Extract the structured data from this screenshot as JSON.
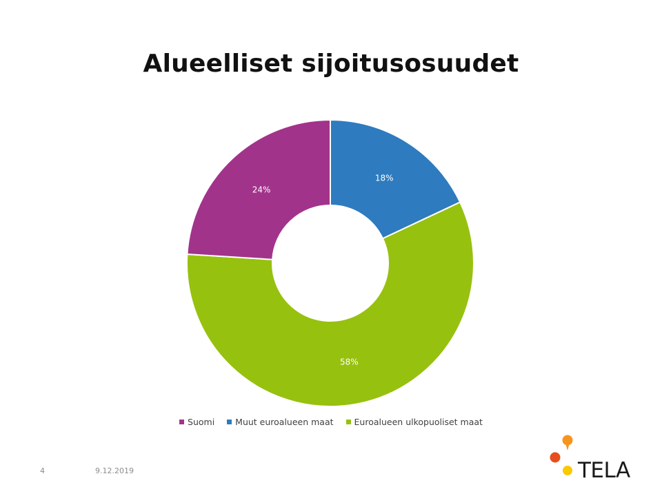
{
  "slide": {
    "page_number": "4",
    "date": "9.12.2019",
    "logo_text": "TELA"
  },
  "chart_data": {
    "type": "pie",
    "variant": "donut",
    "title": "Alueelliset sijoitusosuudet",
    "categories": [
      "Suomi",
      "Muut euroalueen maat",
      "Euroalueen ulkopuoliset maat"
    ],
    "values": [
      24,
      18,
      58
    ],
    "value_labels": [
      "24%",
      "18%",
      "58%"
    ],
    "colors": [
      "#a2338a",
      "#2e7bbf",
      "#97c10f"
    ],
    "legend_position": "bottom",
    "start_angle": "12 o'clock, clockwise, starting with Muut euroalueen maat"
  }
}
